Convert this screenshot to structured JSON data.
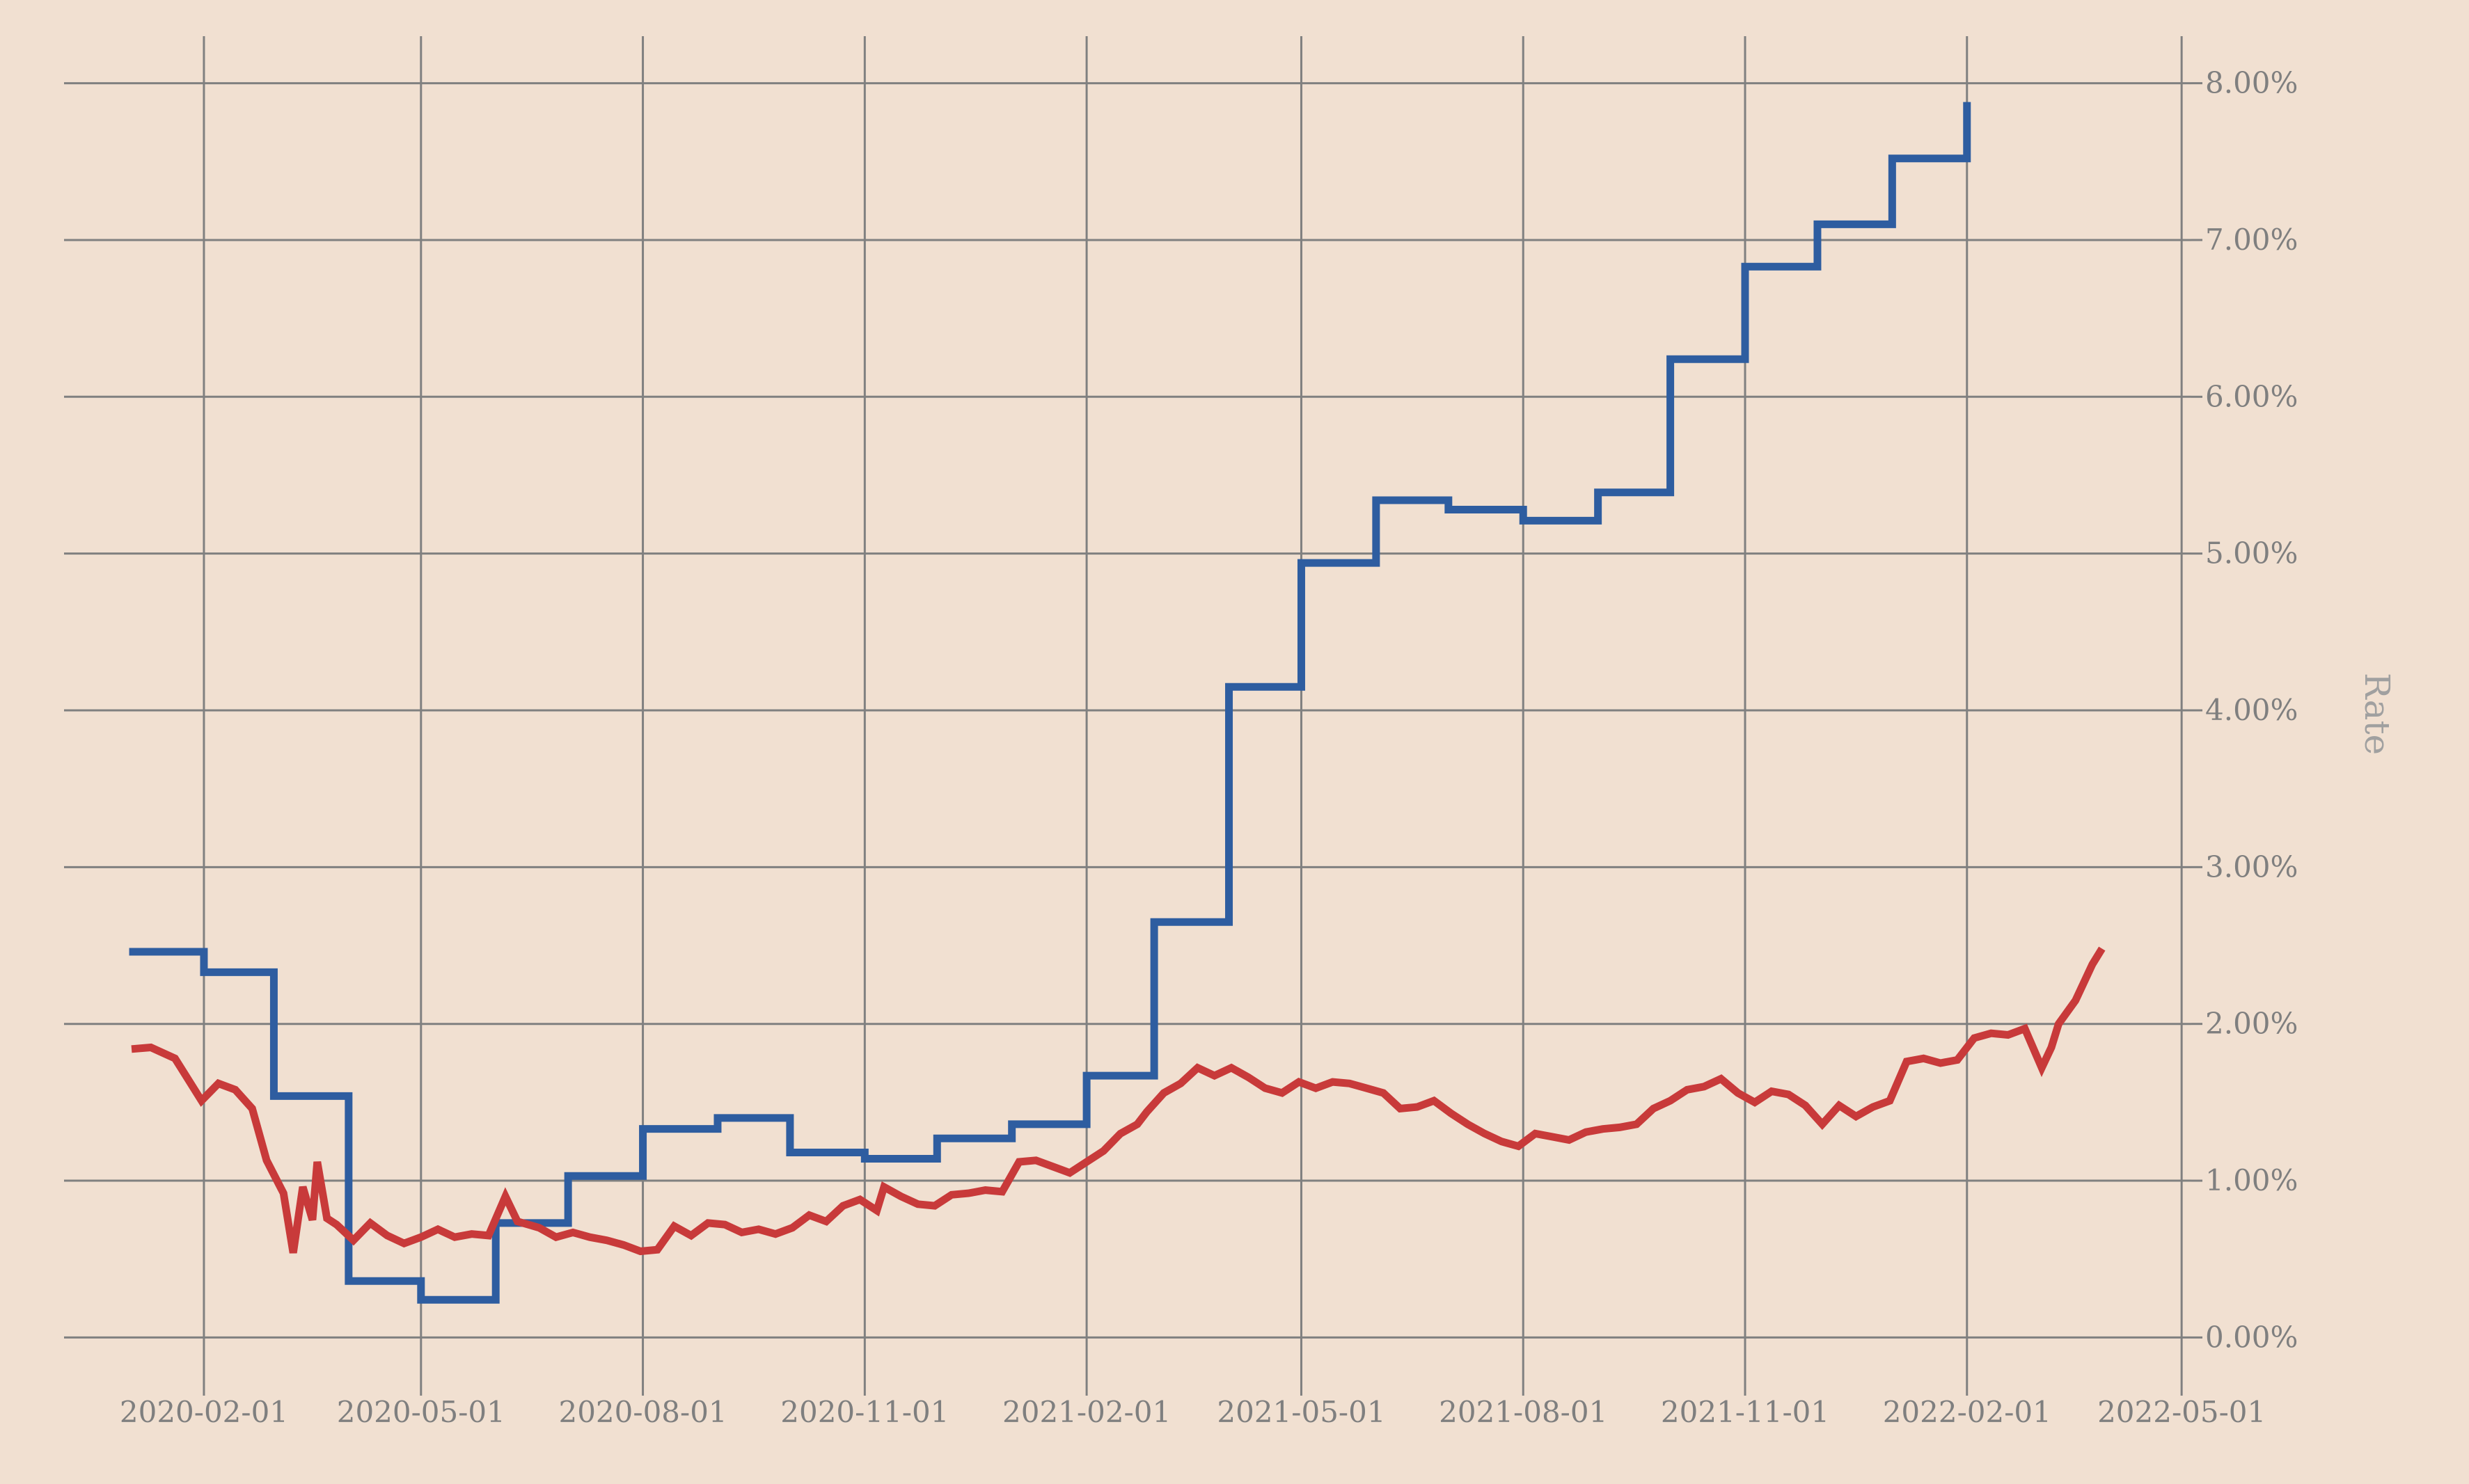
{
  "chart_data": {
    "type": "line",
    "title": "",
    "xlabel": "",
    "ylabel": "Rate",
    "y_axis_side": "right",
    "grid": true,
    "legend": "none",
    "colors": {
      "background": "#f1e0d1",
      "grid": "#808080",
      "series_blue": "#2e5da0",
      "series_red": "#c83a3a",
      "tick_text": "#7f7f7f"
    },
    "xlim": [
      "2019-12-05",
      "2022-05-05"
    ],
    "ylim": [
      -0.3,
      8.3
    ],
    "x_ticks": [
      "2020-02-01",
      "2020-05-01",
      "2020-08-01",
      "2020-11-01",
      "2021-02-01",
      "2021-05-01",
      "2021-08-01",
      "2021-11-01",
      "2022-02-01",
      "2022-05-01"
    ],
    "y_ticks": [
      {
        "value": 0,
        "label": "0.00%"
      },
      {
        "value": 1,
        "label": "1.00%"
      },
      {
        "value": 2,
        "label": "2.00%"
      },
      {
        "value": 3,
        "label": "3.00%"
      },
      {
        "value": 4,
        "label": "4.00%"
      },
      {
        "value": 5,
        "label": "5.00%"
      },
      {
        "value": 6,
        "label": "6.00%"
      },
      {
        "value": 7,
        "label": "7.00%"
      },
      {
        "value": 8,
        "label": "8.00%"
      }
    ],
    "series": [
      {
        "style": "step",
        "color": "#2e5da0",
        "points": [
          [
            "2020-01-01",
            2.46
          ],
          [
            "2020-02-01",
            2.33
          ],
          [
            "2020-03-01",
            1.54
          ],
          [
            "2020-04-01",
            0.36
          ],
          [
            "2020-05-01",
            0.24
          ],
          [
            "2020-06-01",
            0.73
          ],
          [
            "2020-07-01",
            1.03
          ],
          [
            "2020-08-01",
            1.33
          ],
          [
            "2020-09-01",
            1.4
          ],
          [
            "2020-10-01",
            1.18
          ],
          [
            "2020-11-01",
            1.14
          ],
          [
            "2020-12-01",
            1.27
          ],
          [
            "2021-01-01",
            1.36
          ],
          [
            "2021-02-01",
            1.67
          ],
          [
            "2021-03-01",
            2.65
          ],
          [
            "2021-04-01",
            4.15
          ],
          [
            "2021-05-01",
            4.94
          ],
          [
            "2021-06-01",
            5.34
          ],
          [
            "2021-07-01",
            5.28
          ],
          [
            "2021-08-01",
            5.21
          ],
          [
            "2021-09-01",
            5.39
          ],
          [
            "2021-10-01",
            6.24
          ],
          [
            "2021-11-01",
            6.83
          ],
          [
            "2021-12-01",
            7.1
          ],
          [
            "2022-01-01",
            7.52
          ],
          [
            "2022-02-01",
            7.88
          ]
        ]
      },
      {
        "style": "line",
        "color": "#c83a3a",
        "points": [
          [
            "2020-01-02",
            1.84
          ],
          [
            "2020-01-10",
            1.85
          ],
          [
            "2020-01-20",
            1.78
          ],
          [
            "2020-01-31",
            1.51
          ],
          [
            "2020-02-07",
            1.62
          ],
          [
            "2020-02-14",
            1.58
          ],
          [
            "2020-02-21",
            1.46
          ],
          [
            "2020-02-27",
            1.13
          ],
          [
            "2020-03-05",
            0.92
          ],
          [
            "2020-03-09",
            0.54
          ],
          [
            "2020-03-13",
            0.96
          ],
          [
            "2020-03-17",
            0.75
          ],
          [
            "2020-03-19",
            1.12
          ],
          [
            "2020-03-23",
            0.76
          ],
          [
            "2020-03-27",
            0.72
          ],
          [
            "2020-04-03",
            0.62
          ],
          [
            "2020-04-10",
            0.73
          ],
          [
            "2020-04-17",
            0.65
          ],
          [
            "2020-04-24",
            0.6
          ],
          [
            "2020-05-01",
            0.64
          ],
          [
            "2020-05-08",
            0.69
          ],
          [
            "2020-05-15",
            0.64
          ],
          [
            "2020-05-22",
            0.66
          ],
          [
            "2020-05-29",
            0.65
          ],
          [
            "2020-06-05",
            0.9
          ],
          [
            "2020-06-10",
            0.74
          ],
          [
            "2020-06-19",
            0.7
          ],
          [
            "2020-06-26",
            0.64
          ],
          [
            "2020-07-03",
            0.67
          ],
          [
            "2020-07-10",
            0.64
          ],
          [
            "2020-07-17",
            0.62
          ],
          [
            "2020-07-24",
            0.59
          ],
          [
            "2020-07-31",
            0.55
          ],
          [
            "2020-08-07",
            0.56
          ],
          [
            "2020-08-14",
            0.71
          ],
          [
            "2020-08-21",
            0.65
          ],
          [
            "2020-08-28",
            0.73
          ],
          [
            "2020-09-04",
            0.72
          ],
          [
            "2020-09-11",
            0.67
          ],
          [
            "2020-09-18",
            0.69
          ],
          [
            "2020-09-25",
            0.66
          ],
          [
            "2020-10-02",
            0.7
          ],
          [
            "2020-10-09",
            0.78
          ],
          [
            "2020-10-16",
            0.74
          ],
          [
            "2020-10-23",
            0.84
          ],
          [
            "2020-10-30",
            0.88
          ],
          [
            "2020-11-06",
            0.81
          ],
          [
            "2020-11-09",
            0.96
          ],
          [
            "2020-11-16",
            0.9
          ],
          [
            "2020-11-23",
            0.85
          ],
          [
            "2020-11-30",
            0.84
          ],
          [
            "2020-12-07",
            0.91
          ],
          [
            "2020-12-14",
            0.92
          ],
          [
            "2020-12-21",
            0.94
          ],
          [
            "2020-12-28",
            0.93
          ],
          [
            "2021-01-04",
            1.12
          ],
          [
            "2021-01-11",
            1.13
          ],
          [
            "2021-01-18",
            1.09
          ],
          [
            "2021-01-25",
            1.05
          ],
          [
            "2021-02-01",
            1.12
          ],
          [
            "2021-02-08",
            1.19
          ],
          [
            "2021-02-15",
            1.3
          ],
          [
            "2021-02-22",
            1.36
          ],
          [
            "2021-02-26",
            1.44
          ],
          [
            "2021-03-05",
            1.56
          ],
          [
            "2021-03-12",
            1.62
          ],
          [
            "2021-03-19",
            1.72
          ],
          [
            "2021-03-26",
            1.67
          ],
          [
            "2021-04-02",
            1.72
          ],
          [
            "2021-04-09",
            1.66
          ],
          [
            "2021-04-16",
            1.59
          ],
          [
            "2021-04-23",
            1.56
          ],
          [
            "2021-04-30",
            1.63
          ],
          [
            "2021-05-07",
            1.59
          ],
          [
            "2021-05-14",
            1.63
          ],
          [
            "2021-05-21",
            1.62
          ],
          [
            "2021-05-28",
            1.59
          ],
          [
            "2021-06-04",
            1.56
          ],
          [
            "2021-06-11",
            1.46
          ],
          [
            "2021-06-18",
            1.47
          ],
          [
            "2021-06-25",
            1.51
          ],
          [
            "2021-07-02",
            1.43
          ],
          [
            "2021-07-09",
            1.36
          ],
          [
            "2021-07-16",
            1.3
          ],
          [
            "2021-07-23",
            1.25
          ],
          [
            "2021-07-30",
            1.22
          ],
          [
            "2021-08-06",
            1.3
          ],
          [
            "2021-08-13",
            1.28
          ],
          [
            "2021-08-20",
            1.26
          ],
          [
            "2021-08-27",
            1.31
          ],
          [
            "2021-09-03",
            1.33
          ],
          [
            "2021-09-10",
            1.34
          ],
          [
            "2021-09-17",
            1.36
          ],
          [
            "2021-09-24",
            1.46
          ],
          [
            "2021-10-01",
            1.51
          ],
          [
            "2021-10-08",
            1.58
          ],
          [
            "2021-10-15",
            1.6
          ],
          [
            "2021-10-22",
            1.65
          ],
          [
            "2021-10-29",
            1.56
          ],
          [
            "2021-11-05",
            1.5
          ],
          [
            "2021-11-12",
            1.57
          ],
          [
            "2021-11-19",
            1.55
          ],
          [
            "2021-11-26",
            1.48
          ],
          [
            "2021-12-03",
            1.36
          ],
          [
            "2021-12-10",
            1.48
          ],
          [
            "2021-12-17",
            1.41
          ],
          [
            "2021-12-24",
            1.47
          ],
          [
            "2021-12-31",
            1.51
          ],
          [
            "2022-01-07",
            1.76
          ],
          [
            "2022-01-14",
            1.78
          ],
          [
            "2022-01-21",
            1.75
          ],
          [
            "2022-01-28",
            1.77
          ],
          [
            "2022-02-04",
            1.91
          ],
          [
            "2022-02-11",
            1.94
          ],
          [
            "2022-02-18",
            1.93
          ],
          [
            "2022-02-25",
            1.97
          ],
          [
            "2022-03-04",
            1.72
          ],
          [
            "2022-03-08",
            1.85
          ],
          [
            "2022-03-11",
            2.0
          ],
          [
            "2022-03-18",
            2.15
          ],
          [
            "2022-03-25",
            2.38
          ],
          [
            "2022-03-29",
            2.48
          ]
        ]
      }
    ]
  }
}
